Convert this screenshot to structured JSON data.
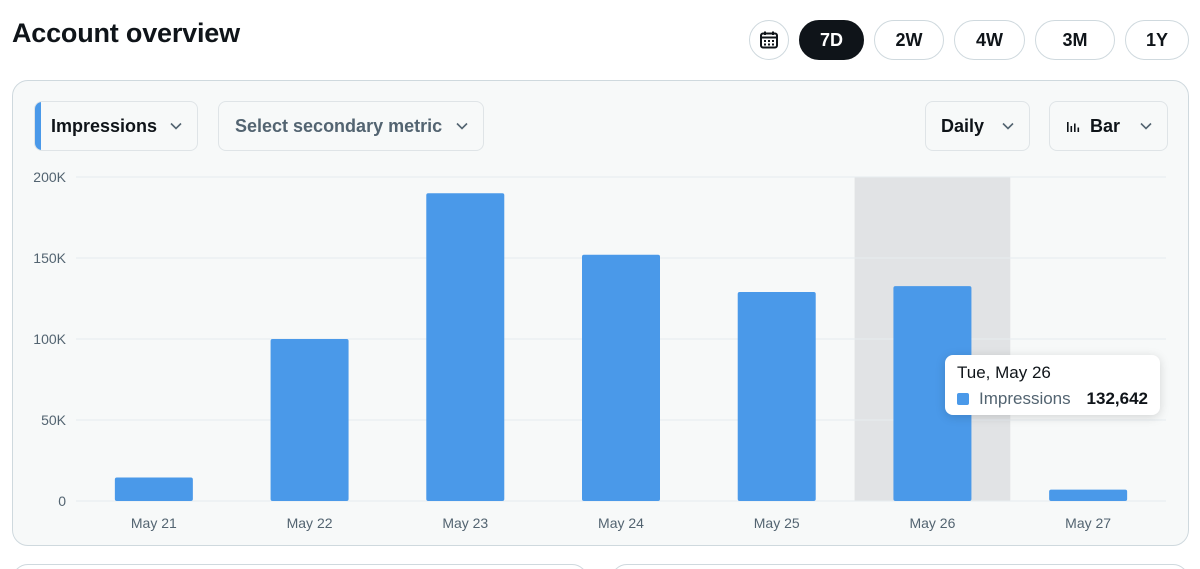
{
  "header": {
    "title": "Account overview"
  },
  "range": {
    "calendar_icon": "calendar-icon",
    "options": [
      "7D",
      "2W",
      "4W",
      "3M",
      "1Y"
    ],
    "selected": "7D"
  },
  "controls": {
    "primary_metric": "Impressions",
    "secondary_metric_placeholder": "Select secondary metric",
    "interval": "Daily",
    "chart_type": "Bar"
  },
  "tooltip": {
    "date": "Tue, May 26",
    "series": "Impressions",
    "value": "132,642"
  },
  "colors": {
    "bar": "#4a99e9",
    "highlight": "#e1e3e5",
    "grid": "#e6ecf0",
    "active": "#0f1419"
  },
  "chart_data": {
    "type": "bar",
    "categories": [
      "May 21",
      "May 22",
      "May 23",
      "May 24",
      "May 25",
      "May 26",
      "May 27"
    ],
    "series": [
      {
        "name": "Impressions",
        "values": [
          14500,
          100000,
          190000,
          152000,
          129000,
          132642,
          7000
        ]
      }
    ],
    "ylim": [
      0,
      200000
    ],
    "yticks": [
      0,
      50000,
      100000,
      150000,
      200000
    ],
    "ytick_labels": [
      "0",
      "50K",
      "100K",
      "150K",
      "200K"
    ],
    "highlighted_category": "May 26",
    "grid": true
  }
}
